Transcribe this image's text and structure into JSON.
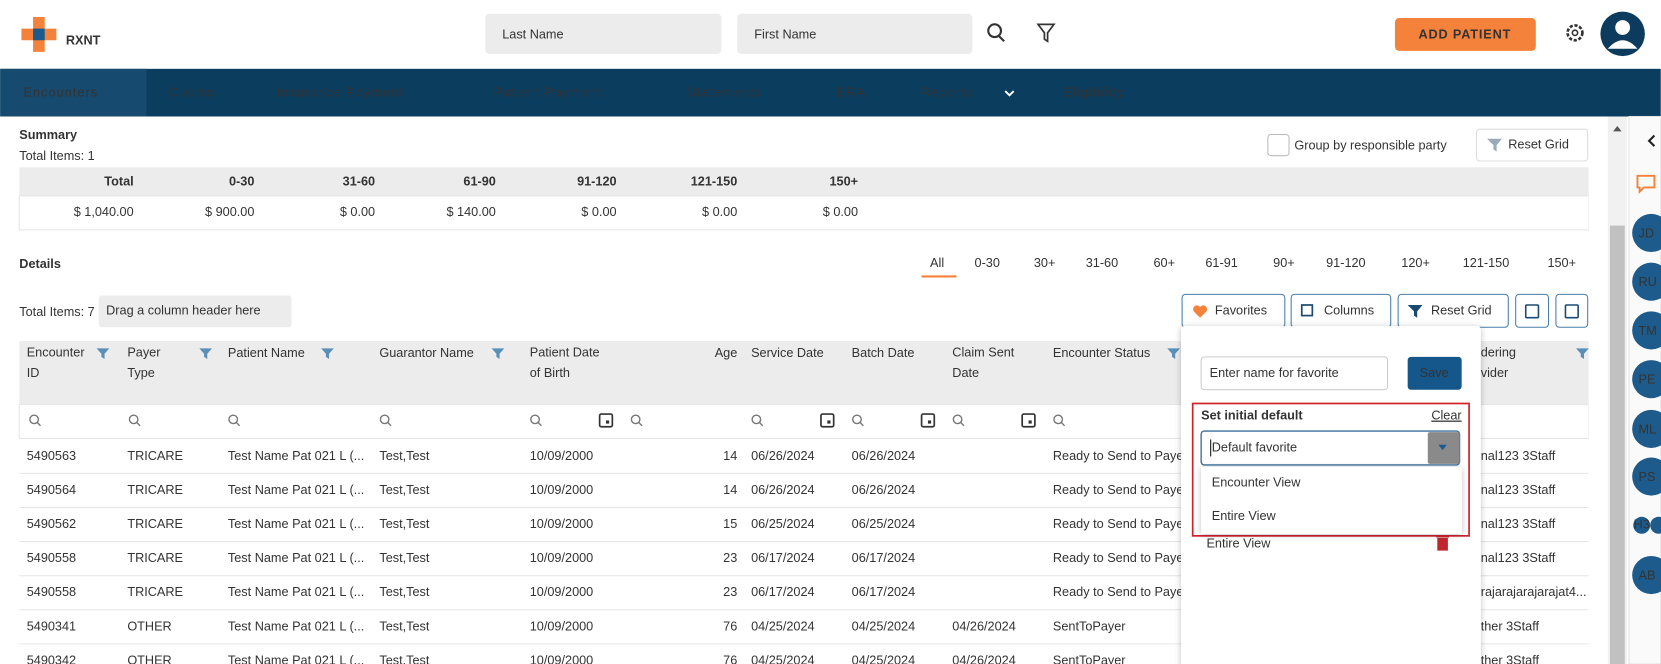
{
  "header": {
    "logo": "RXNT",
    "search_placeholders": [
      "Last Name",
      "First Name"
    ],
    "add_patient": "ADD PATIENT"
  },
  "nav": [
    "Encounters",
    "Claims",
    "Insurance Payment",
    "Patient Payment",
    "Statements",
    "ERA",
    "Reports",
    "Eligibility"
  ],
  "summary": {
    "title": "Summary",
    "total_items": "Total Items: 1",
    "group_by": "Group by responsible party",
    "reset_grid": "Reset Grid",
    "columns": [
      "Total",
      "0-30",
      "31-60",
      "61-90",
      "91-120",
      "121-150",
      "150+"
    ],
    "values": [
      "$ 1,040.00",
      "$ 900.00",
      "$ 0.00",
      "$ 140.00",
      "$ 0.00",
      "$ 0.00",
      "$ 0.00"
    ]
  },
  "details": {
    "title": "Details",
    "filters": [
      "All",
      "0-30",
      "30+",
      "31-60",
      "60+",
      "61-91",
      "90+",
      "91-120",
      "120+",
      "121-150",
      "150+"
    ],
    "total_items": "Total Items: 7",
    "drag_hint": "Drag a column header here",
    "buttons": [
      "Favorites",
      "Columns",
      "Reset Grid"
    ]
  },
  "table": {
    "columns": [
      "Encounter ID",
      "Payer Type",
      "Patient Name",
      "Guarantor Name",
      "Patient Date of Birth",
      "Age",
      "Service Date",
      "Batch Date",
      "Claim Sent Date",
      "Encounter Status",
      "dering vider"
    ],
    "rows": [
      [
        "5490563",
        "TRICARE",
        "Test Name Pat 021 L (...",
        "Test,Test",
        "10/09/2000",
        14,
        "06/26/2024",
        "06/26/2024",
        null,
        "Ready to Send to Payer",
        "nal123 3Staff"
      ],
      [
        "5490564",
        "TRICARE",
        "Test Name Pat 021 L (...",
        "Test,Test",
        "10/09/2000",
        14,
        "06/26/2024",
        "06/26/2024",
        null,
        "Ready to Send to Payer",
        "nal123 3Staff"
      ],
      [
        "5490562",
        "TRICARE",
        "Test Name Pat 021 L (...",
        "Test,Test",
        "10/09/2000",
        15,
        "06/25/2024",
        "06/25/2024",
        null,
        "Ready to Send to Payer",
        "nal123 3Staff"
      ],
      [
        "5490558",
        "TRICARE",
        "Test Name Pat 021 L (...",
        "Test,Test",
        "10/09/2000",
        23,
        "06/17/2024",
        "06/17/2024",
        null,
        "Ready to Send to Payer",
        "nal123 3Staff"
      ],
      [
        "5490558",
        "TRICARE",
        "Test Name Pat 021 L (...",
        "Test,Test",
        "10/09/2000",
        23,
        "06/17/2024",
        "06/17/2024",
        null,
        "Ready to Send to Payer",
        "rajarajarajarajat4..."
      ],
      [
        "5490341",
        "OTHER",
        "Test Name Pat 021 L (...",
        "Test,Test",
        "10/09/2000",
        76,
        "04/25/2024",
        "04/25/2024",
        "04/26/2024",
        "SentToPayer",
        "ther 3Staff"
      ],
      [
        "5490342",
        "OTHER",
        "Test Name Pat 021 L (...",
        "Test,Test",
        "10/09/2000",
        76,
        "04/25/2024",
        "04/25/2024",
        "04/26/2024",
        "SentToPayer",
        "ther 3Staff"
      ]
    ]
  },
  "favorites_popup": {
    "name_placeholder": "Enter name for favorite",
    "save": "Save",
    "set_initial_default": "Set initial default",
    "clear": "Clear",
    "select_placeholder": "Default favorite",
    "options": [
      "Encounter View",
      "Entire View"
    ],
    "saved": [
      "Entire View"
    ]
  },
  "sidebar": {
    "avatars": [
      "JD",
      "RU",
      "TM",
      "PE",
      "ML",
      "PS"
    ],
    "small_avatar": "H3",
    "last_avatar": "AB"
  }
}
